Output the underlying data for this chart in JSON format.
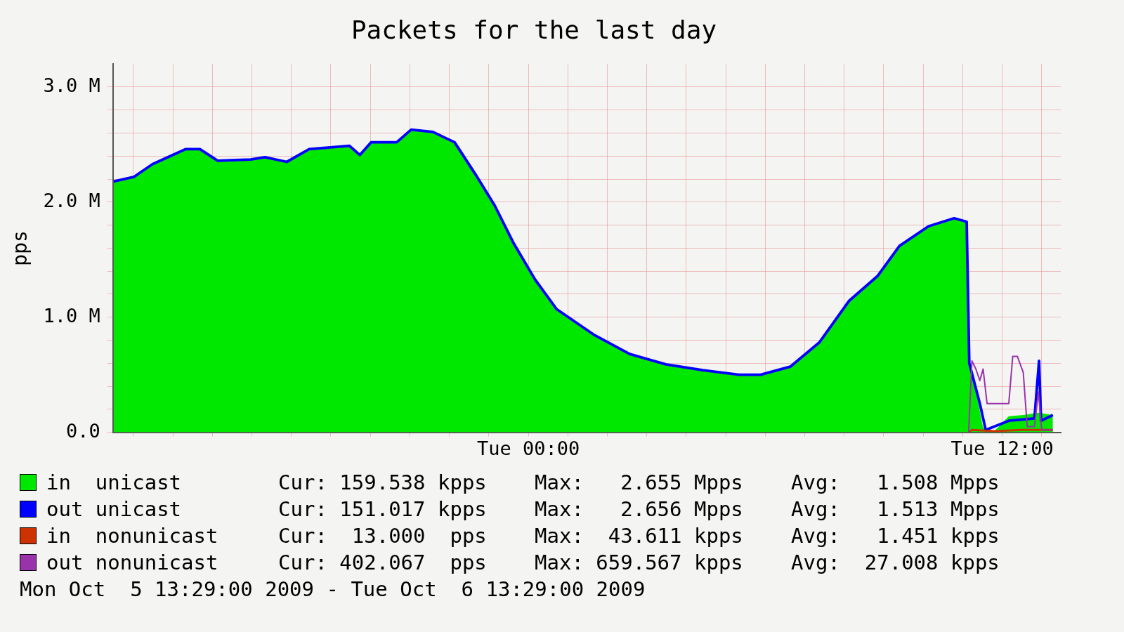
{
  "chart_data": {
    "type": "area",
    "title": "Packets for the last day",
    "ylabel": "pps",
    "xlim": [
      "2009-10-05T13:29",
      "2009-10-06T13:29"
    ],
    "xticks": [
      {
        "value": "2009-10-05T14:00",
        "label": null
      },
      {
        "value": "2009-10-05T15:00",
        "label": null
      },
      {
        "value": "2009-10-05T16:00",
        "label": null
      },
      {
        "value": "2009-10-05T17:00",
        "label": null
      },
      {
        "value": "2009-10-05T18:00",
        "label": null
      },
      {
        "value": "2009-10-05T19:00",
        "label": null
      },
      {
        "value": "2009-10-05T20:00",
        "label": null
      },
      {
        "value": "2009-10-05T21:00",
        "label": null
      },
      {
        "value": "2009-10-05T22:00",
        "label": null
      },
      {
        "value": "2009-10-05T23:00",
        "label": null
      },
      {
        "value": "2009-10-06T00:00",
        "label": "Tue 00:00"
      },
      {
        "value": "2009-10-06T01:00",
        "label": null
      },
      {
        "value": "2009-10-06T02:00",
        "label": null
      },
      {
        "value": "2009-10-06T03:00",
        "label": null
      },
      {
        "value": "2009-10-06T04:00",
        "label": null
      },
      {
        "value": "2009-10-06T05:00",
        "label": null
      },
      {
        "value": "2009-10-06T06:00",
        "label": null
      },
      {
        "value": "2009-10-06T07:00",
        "label": null
      },
      {
        "value": "2009-10-06T08:00",
        "label": null
      },
      {
        "value": "2009-10-06T09:00",
        "label": null
      },
      {
        "value": "2009-10-06T10:00",
        "label": null
      },
      {
        "value": "2009-10-06T11:00",
        "label": null
      },
      {
        "value": "2009-10-06T12:00",
        "label": "Tue 12:00"
      },
      {
        "value": "2009-10-06T13:00",
        "label": null
      }
    ],
    "ylim": [
      0,
      3200000
    ],
    "yticks": [
      {
        "value": 0,
        "label": "0.0"
      },
      {
        "value": 200000,
        "label": null
      },
      {
        "value": 400000,
        "label": null
      },
      {
        "value": 600000,
        "label": null
      },
      {
        "value": 800000,
        "label": null
      },
      {
        "value": 1000000,
        "label": "1.0 M"
      },
      {
        "value": 1200000,
        "label": null
      },
      {
        "value": 1400000,
        "label": null
      },
      {
        "value": 1600000,
        "label": null
      },
      {
        "value": 1800000,
        "label": null
      },
      {
        "value": 2000000,
        "label": "2.0 M"
      },
      {
        "value": 2200000,
        "label": null
      },
      {
        "value": 2400000,
        "label": null
      },
      {
        "value": 2600000,
        "label": null
      },
      {
        "value": 2800000,
        "label": null
      },
      {
        "value": 3000000,
        "label": "3.0 M"
      }
    ],
    "grid": true,
    "legend": "bottom",
    "series": [
      {
        "name": "in  unicast",
        "color": "#00e800",
        "x": [
          "2009-10-05T13:30",
          "2009-10-05T14:01",
          "2009-10-05T14:29",
          "2009-10-05T15:19",
          "2009-10-05T15:41",
          "2009-10-05T16:08",
          "2009-10-05T16:58",
          "2009-10-05T17:20",
          "2009-10-05T17:53",
          "2009-10-05T18:27",
          "2009-10-05T19:28",
          "2009-10-05T19:44",
          "2009-10-05T20:01",
          "2009-10-05T20:40",
          "2009-10-05T21:02",
          "2009-10-05T21:35",
          "2009-10-05T22:08",
          "2009-10-05T22:41",
          "2009-10-05T23:09",
          "2009-10-05T23:37",
          "2009-10-06T00:10",
          "2009-10-06T00:43",
          "2009-10-06T01:39",
          "2009-10-06T02:34",
          "2009-10-06T03:29",
          "2009-10-06T04:25",
          "2009-10-06T05:20",
          "2009-10-06T05:53",
          "2009-10-06T06:38",
          "2009-10-06T07:22",
          "2009-10-06T08:07",
          "2009-10-06T08:51",
          "2009-10-06T09:24",
          "2009-10-06T10:08",
          "2009-10-06T10:47",
          "2009-10-06T11:06",
          "2009-10-06T11:10",
          "2009-10-06T11:20",
          "2009-10-06T11:31",
          "2009-10-06T11:48",
          "2009-10-06T12:10",
          "2009-10-06T12:32",
          "2009-10-06T12:55",
          "2009-10-06T13:17"
        ],
        "values": [
          2180000,
          2220000,
          2330000,
          2460000,
          2460000,
          2360000,
          2370000,
          2390000,
          2350000,
          2460000,
          2490000,
          2410000,
          2520000,
          2520000,
          2630000,
          2610000,
          2520000,
          2230000,
          1970000,
          1650000,
          1330000,
          1070000,
          850000,
          680000,
          590000,
          540000,
          500000,
          500000,
          570000,
          780000,
          1140000,
          1360000,
          1620000,
          1790000,
          1860000,
          1830000,
          620000,
          360000,
          40000,
          10000,
          140000,
          150000,
          170000,
          150000
        ]
      },
      {
        "name": "out unicast",
        "type": "line",
        "color": "#0000ff",
        "x": [
          "2009-10-05T13:30",
          "2009-10-05T14:01",
          "2009-10-05T14:29",
          "2009-10-05T15:19",
          "2009-10-05T15:41",
          "2009-10-05T16:08",
          "2009-10-05T16:58",
          "2009-10-05T17:20",
          "2009-10-05T17:53",
          "2009-10-05T18:27",
          "2009-10-05T19:28",
          "2009-10-05T19:44",
          "2009-10-05T20:01",
          "2009-10-05T20:40",
          "2009-10-05T21:02",
          "2009-10-05T21:35",
          "2009-10-05T22:08",
          "2009-10-05T22:41",
          "2009-10-05T23:09",
          "2009-10-05T23:37",
          "2009-10-06T00:10",
          "2009-10-06T00:43",
          "2009-10-06T01:39",
          "2009-10-06T02:34",
          "2009-10-06T03:29",
          "2009-10-06T04:25",
          "2009-10-06T05:20",
          "2009-10-06T05:53",
          "2009-10-06T06:38",
          "2009-10-06T07:22",
          "2009-10-06T08:07",
          "2009-10-06T08:51",
          "2009-10-06T09:24",
          "2009-10-06T10:08",
          "2009-10-06T10:47",
          "2009-10-06T11:06",
          "2009-10-06T11:10",
          "2009-10-06T11:26",
          "2009-10-06T11:35",
          "2009-10-06T12:10",
          "2009-10-06T12:49",
          "2009-10-06T12:56",
          "2009-10-06T12:59",
          "2009-10-06T13:17"
        ],
        "values": [
          2180000,
          2220000,
          2330000,
          2460000,
          2460000,
          2360000,
          2370000,
          2390000,
          2350000,
          2460000,
          2490000,
          2410000,
          2520000,
          2520000,
          2630000,
          2610000,
          2520000,
          2230000,
          1970000,
          1650000,
          1330000,
          1070000,
          850000,
          680000,
          590000,
          540000,
          500000,
          500000,
          570000,
          780000,
          1140000,
          1360000,
          1620000,
          1790000,
          1860000,
          1830000,
          600000,
          250000,
          20000,
          100000,
          120000,
          620000,
          100000,
          150000
        ]
      },
      {
        "name": "in  nonunicast",
        "type": "line",
        "color": "#cc3300",
        "x": [
          "2009-10-06T11:09",
          "2009-10-06T11:14",
          "2009-10-06T11:48",
          "2009-10-06T12:30",
          "2009-10-06T13:17"
        ],
        "values": [
          0,
          20000,
          10000,
          20000,
          20000
        ]
      },
      {
        "name": "out nonunicast",
        "type": "line",
        "color": "#9933aa",
        "x": [
          "2009-10-06T11:09",
          "2009-10-06T11:14",
          "2009-10-06T11:20",
          "2009-10-06T11:26",
          "2009-10-06T11:31",
          "2009-10-06T11:37",
          "2009-10-06T12:10",
          "2009-10-06T12:16",
          "2009-10-06T12:23",
          "2009-10-06T12:32",
          "2009-10-06T12:38",
          "2009-10-06T12:49",
          "2009-10-06T12:55",
          "2009-10-06T13:00",
          "2009-10-06T13:17"
        ],
        "values": [
          0,
          620000,
          550000,
          450000,
          550000,
          250000,
          250000,
          660000,
          660000,
          520000,
          50000,
          50000,
          350000,
          20000,
          20000
        ]
      }
    ],
    "annotations": [
      "Cur: 159.538 kpps",
      "Max:   2.655 Mpps",
      "Avg:   1.508 Mpps",
      "Cur: 151.017 kpps",
      "Max:   2.656 Mpps",
      "Avg:   1.513 Mpps",
      "Cur:  13.000  pps",
      "Max:  43.611 kpps",
      "Avg:   1.451 kpps",
      "Cur: 402.067  pps",
      "Max: 659.567 kpps",
      "Avg:  27.008 kpps",
      "Mon Oct  5 13:29:00 2009 - Tue Oct  6 13:29:00 2009"
    ]
  }
}
